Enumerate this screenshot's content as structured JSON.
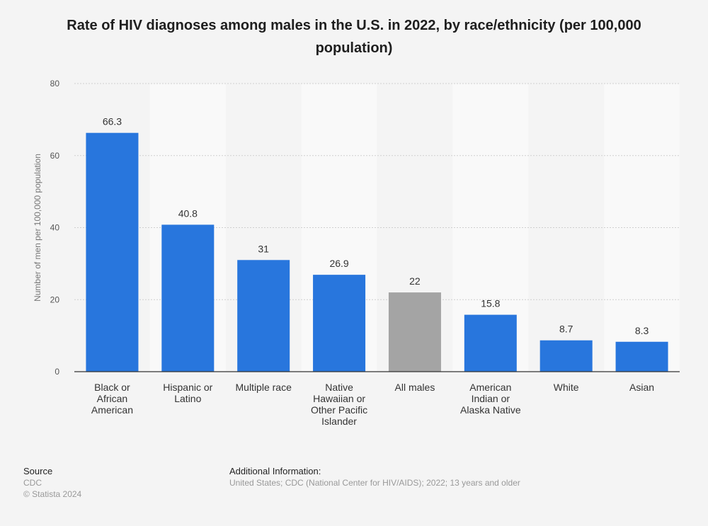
{
  "chart_data": {
    "type": "bar",
    "title": "Rate of HIV diagnoses among males in the U.S. in 2022, by race/ethnicity (per 100,000 population)",
    "ylabel": "Number of men per 100,000 population",
    "xlabel": "",
    "ylim": [
      0,
      80
    ],
    "yticks": [
      0,
      20,
      40,
      60,
      80
    ],
    "grid": true,
    "categories": [
      "Black or African American",
      "Hispanic or Latino",
      "Multiple race",
      "Native Hawaiian or Other Pacific Islander",
      "All males",
      "American Indian or Alaska Native",
      "White",
      "Asian"
    ],
    "category_label_lines": [
      [
        "Black or",
        "African",
        "American"
      ],
      [
        "Hispanic or",
        "Latino"
      ],
      [
        "Multiple race"
      ],
      [
        "Native",
        "Hawaiian or",
        "Other Pacific",
        "Islander"
      ],
      [
        "All males"
      ],
      [
        "American",
        "Indian or",
        "Alaska Native"
      ],
      [
        "White"
      ],
      [
        "Asian"
      ]
    ],
    "values": [
      66.3,
      40.8,
      31,
      26.9,
      22,
      15.8,
      8.7,
      8.3
    ],
    "value_labels": [
      "66.3",
      "40.8",
      "31",
      "26.9",
      "22",
      "15.8",
      "8.7",
      "8.3"
    ],
    "bar_colors": [
      "#2876dd",
      "#2876dd",
      "#2876dd",
      "#2876dd",
      "#a4a4a4",
      "#2876dd",
      "#2876dd",
      "#2876dd"
    ]
  },
  "colors": {
    "bar": "#2876dd",
    "highlight_bar": "#a4a4a4",
    "band": "#f9f9f9",
    "background": "#f4f4f4"
  },
  "footer": {
    "source_heading": "Source",
    "source_value": "CDC",
    "copyright": "© Statista 2024",
    "additional_heading": "Additional Information:",
    "additional_text": "United States; CDC (National Center for HIV/AIDS); 2022; 13 years and older"
  }
}
